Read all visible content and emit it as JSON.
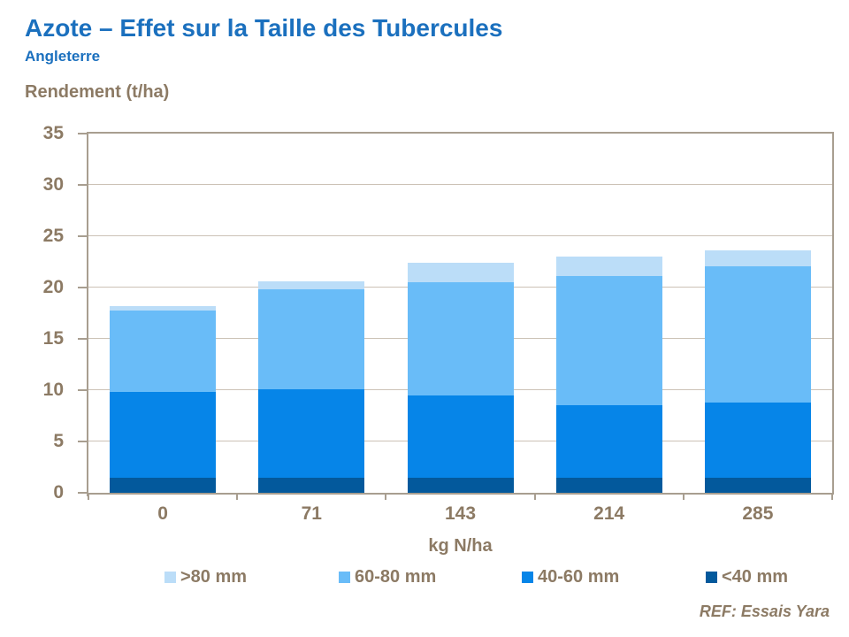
{
  "header": {
    "title": "Azote – Effet sur la Taille des Tubercules",
    "subtitle": "Angleterre"
  },
  "chart_data": {
    "type": "bar",
    "stacked": true,
    "title": "Azote – Effet sur la Taille des Tubercules",
    "ylabel": "Rendement (t/ha)",
    "xlabel": "kg N/ha",
    "categories": [
      "0",
      "71",
      "143",
      "214",
      "285"
    ],
    "series": [
      {
        "name": "<40 mm",
        "color": "#03599C",
        "values": [
          1.5,
          1.5,
          1.5,
          1.5,
          1.5
        ]
      },
      {
        "name": "40-60 mm",
        "color": "#0685E8",
        "values": [
          8.3,
          8.6,
          8.0,
          7.0,
          7.3
        ]
      },
      {
        "name": "60-80 mm",
        "color": "#69BCF8",
        "values": [
          8.0,
          9.7,
          11.0,
          12.6,
          13.3
        ]
      },
      {
        "name": ">80 mm",
        "color": "#BBDDF8",
        "values": [
          0.4,
          0.8,
          1.9,
          1.9,
          1.5
        ]
      }
    ],
    "totals": [
      18.2,
      20.6,
      22.4,
      23.0,
      23.6
    ],
    "ylim": [
      0,
      35
    ],
    "ytick_step": 5,
    "grid": true,
    "legend_position": "bottom",
    "legend_order": [
      ">80 mm",
      "60-80 mm",
      "40-60 mm",
      "<40 mm"
    ]
  },
  "footer": {
    "ref": "REF: Essais Yara"
  },
  "colors": {
    "title_blue": "#1B70BE",
    "text_brown": "#8C7A64",
    "axis_line": "#A89E90",
    "gridline": "#CCC2B6",
    "background": "#FFFFFF"
  }
}
